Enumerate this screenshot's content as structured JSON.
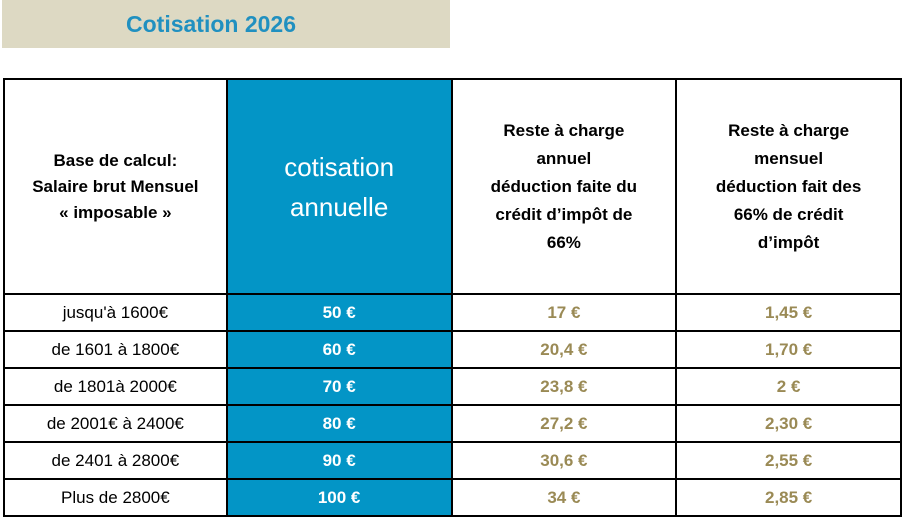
{
  "title": "Cotisation 2026",
  "headers": {
    "base": [
      "Base de calcul:",
      "Salaire brut Mensuel",
      "« imposable »"
    ],
    "cotisation": [
      "cotisation",
      "annuelle"
    ],
    "reste_annuel": [
      "Reste à charge",
      "annuel",
      "déduction faite du",
      "crédit d’impôt de",
      "66%"
    ],
    "reste_mensuel": [
      "Reste à charge",
      "mensuel",
      "déduction fait des",
      "66% de crédit",
      "d’impôt"
    ]
  },
  "rows": [
    {
      "base": "jusqu'à 1600€",
      "cotisation": "50 €",
      "reste_annuel": "17 €",
      "reste_mensuel": "1,45 €"
    },
    {
      "base": "de 1601 à 1800€",
      "cotisation": "60 €",
      "reste_annuel": "20,4 €",
      "reste_mensuel": "1,70 €"
    },
    {
      "base": "de 1801à 2000€",
      "cotisation": "70 €",
      "reste_annuel": "23,8 €",
      "reste_mensuel": "2 €"
    },
    {
      "base": "de 2001€ à 2400€",
      "cotisation": "80 €",
      "reste_annuel": "27,2 €",
      "reste_mensuel": "2,30 €"
    },
    {
      "base": "de 2401 à 2800€",
      "cotisation": "90 €",
      "reste_annuel": "30,6 €",
      "reste_mensuel": "2,55 €"
    },
    {
      "base": "Plus de 2800€",
      "cotisation": "100 €",
      "reste_annuel": "34 €",
      "reste_mensuel": "2,85 €"
    }
  ],
  "colors": {
    "title_text": "#2090c0",
    "title_band": "#ddd9c3",
    "cotisation_column": "#0395c6",
    "reste_values": "#9a8a55"
  }
}
